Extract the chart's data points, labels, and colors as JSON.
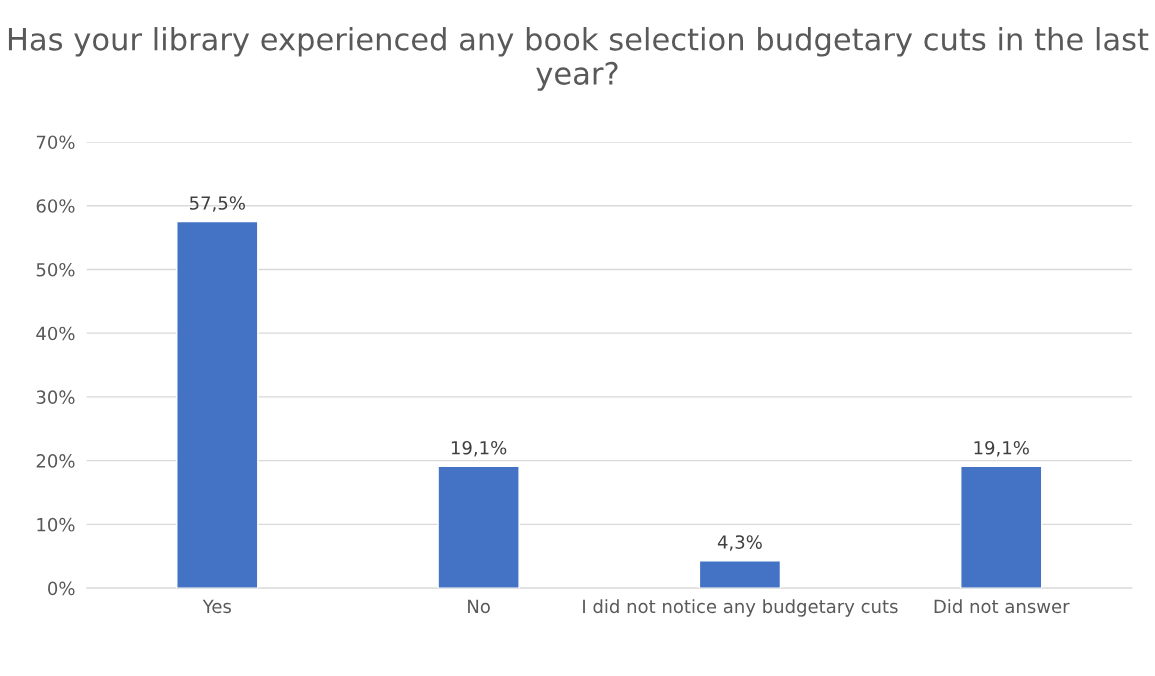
{
  "chart_data": {
    "type": "bar",
    "title": "Has your library experienced any book selection budgetary cuts in the last year?",
    "categories": [
      "Yes",
      "No",
      "I did not notice any budgetary cuts",
      "Did not answer"
    ],
    "values": [
      57.5,
      19.1,
      4.3,
      19.1
    ],
    "value_labels": [
      "57,5%",
      "19,1%",
      "4,3%",
      "19,1%"
    ],
    "color": "#4472c4",
    "ylim": [
      0,
      70
    ],
    "yticks": [
      {
        "value": 0,
        "label": "0%"
      },
      {
        "value": 10,
        "label": "10%"
      },
      {
        "value": 20,
        "label": "20%"
      },
      {
        "value": 30,
        "label": "30%"
      },
      {
        "value": 40,
        "label": "40%"
      },
      {
        "value": 50,
        "label": "50%"
      },
      {
        "value": 60,
        "label": "60%"
      },
      {
        "value": 70,
        "label": "70%"
      }
    ],
    "grid": "y"
  }
}
